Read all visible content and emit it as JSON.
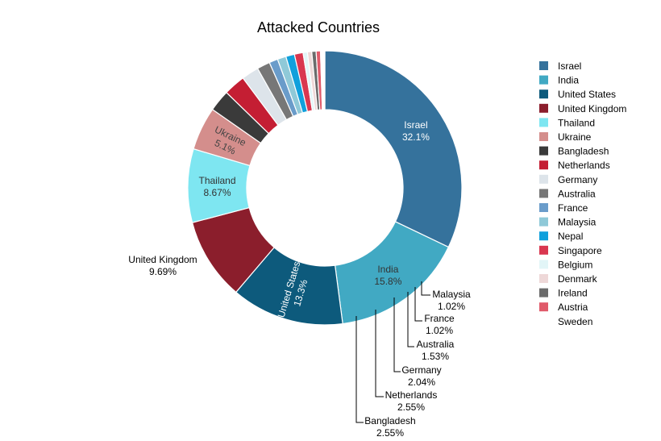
{
  "chart_data": {
    "type": "pie",
    "donut": true,
    "title": "Attacked Countries",
    "legend_position": "right",
    "categories": [
      "Israel",
      "India",
      "United States",
      "United Kingdom",
      "Thailand",
      "Ukraine",
      "Bangladesh",
      "Netherlands",
      "Germany",
      "Australia",
      "France",
      "Malaysia",
      "Nepal",
      "Singapore",
      "Belgium",
      "Denmark",
      "Ireland",
      "Austria",
      "Sweden"
    ],
    "values": [
      32.1,
      15.8,
      13.3,
      9.69,
      8.67,
      5.1,
      2.55,
      2.55,
      2.04,
      1.53,
      1.02,
      1.02,
      1.02,
      1.02,
      0.51,
      0.51,
      0.51,
      0.51,
      0.51
    ],
    "colors": [
      "#35729c",
      "#41a9c3",
      "#0d5a7c",
      "#8b1e2c",
      "#7ee6f1",
      "#d48e8c",
      "#3a3a3a",
      "#c41e33",
      "#dde4ea",
      "#777777",
      "#6a9cca",
      "#8fc9d8",
      "#10a0dc",
      "#d9374f",
      "#e2f5f7",
      "#eed8d8",
      "#6b6b6b",
      "#e05a6a",
      "#ffffff"
    ],
    "slice_labels": [
      {
        "name": "Israel",
        "value": "32.1%"
      },
      {
        "name": "India",
        "value": "15.8%"
      },
      {
        "name": "United States",
        "value": "13.3%"
      },
      {
        "name": "United Kingdom",
        "value": "9.69%"
      },
      {
        "name": "Thailand",
        "value": "8.67%"
      },
      {
        "name": "Ukraine",
        "value": "5.1%"
      },
      {
        "name": "Bangladesh",
        "value": "2.55%"
      },
      {
        "name": "Netherlands",
        "value": "2.55%"
      },
      {
        "name": "Germany",
        "value": "2.04%"
      },
      {
        "name": "Australia",
        "value": "1.53%"
      },
      {
        "name": "France",
        "value": "1.02%"
      },
      {
        "name": "Malaysia",
        "value": "1.02%"
      }
    ]
  }
}
